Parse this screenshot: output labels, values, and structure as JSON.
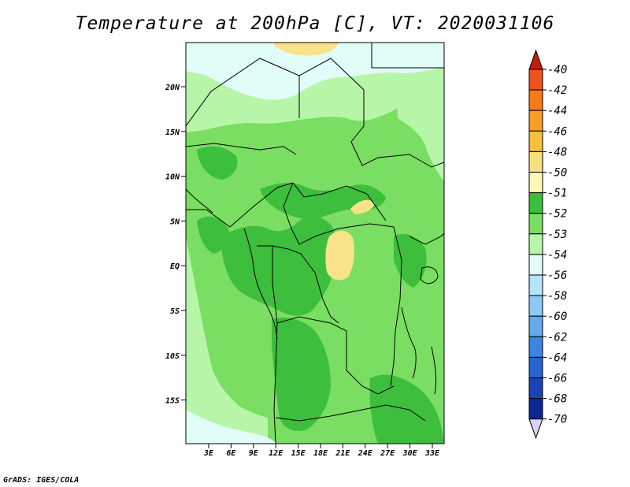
{
  "title": "Temperature at 200hPa [C], VT: 2020031106",
  "footer": "GrADS: IGES/COLA",
  "map": {
    "lat_labels": [
      "20N",
      "15N",
      "10N",
      "5N",
      "EQ",
      "5S",
      "10S",
      "15S"
    ],
    "lon_labels": [
      "3E",
      "6E",
      "9E",
      "12E",
      "15E",
      "18E",
      "21E",
      "24E",
      "27E",
      "30E",
      "33E"
    ],
    "field_colors": {
      "warm_patch": "#f8e28a",
      "level_52": "#3dbe3d",
      "level_53": "#79de62",
      "level_54": "#b7f5a8",
      "level_55": "#e1fdf8"
    }
  },
  "colorbar": {
    "levels": [
      {
        "label": "-40",
        "color": "#e22a10"
      },
      {
        "label": "-42",
        "color": "#f0521c"
      },
      {
        "label": "-44",
        "color": "#f47a1c"
      },
      {
        "label": "-46",
        "color": "#f49e26"
      },
      {
        "label": "-48",
        "color": "#f5c03a"
      },
      {
        "label": "-50",
        "color": "#f7e07e"
      },
      {
        "label": "-51",
        "color": "#fdf6b6"
      },
      {
        "label": "-52",
        "color": "#3dbe3d"
      },
      {
        "label": "-53",
        "color": "#79de62"
      },
      {
        "label": "-54",
        "color": "#b7f5a8"
      },
      {
        "label": "-56",
        "color": "#e1fdf8"
      },
      {
        "label": "-58",
        "color": "#b4e4fa"
      },
      {
        "label": "-60",
        "color": "#8cc8f5"
      },
      {
        "label": "-62",
        "color": "#66a9ed"
      },
      {
        "label": "-64",
        "color": "#3d84e3"
      },
      {
        "label": "-66",
        "color": "#2863d2"
      },
      {
        "label": "-68",
        "color": "#1a44b5"
      },
      {
        "label": "-70",
        "color": "#0c2791"
      }
    ],
    "top_color": "#c81a0a",
    "bottom_color": "#d9d2f5"
  }
}
